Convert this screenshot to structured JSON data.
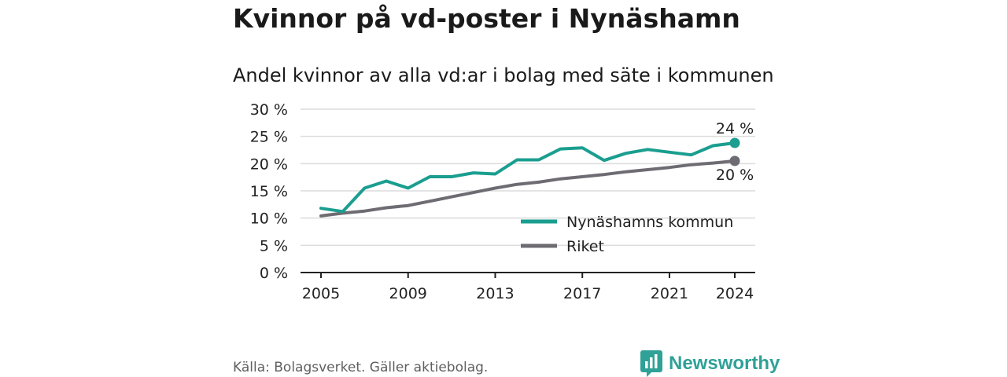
{
  "title": "Kvinnor på vd-poster i Nynäshamn",
  "subtitle": "Andel kvinnor av alla vd:ar i bolag med säte i kommunen",
  "source": "Källa: Bolagsverket. Gäller aktiebolag.",
  "brand": {
    "name": "Newsworthy",
    "logo_icon": "chart-bubble-icon"
  },
  "colors": {
    "primary": "#1a9e8f",
    "secondary": "#6e6c72",
    "brand": "#2fa197"
  },
  "chart_data": {
    "type": "line",
    "x": [
      2005,
      2006,
      2007,
      2008,
      2009,
      2010,
      2011,
      2012,
      2013,
      2014,
      2015,
      2016,
      2017,
      2018,
      2019,
      2020,
      2021,
      2022,
      2023,
      2024
    ],
    "series": [
      {
        "name": "Nynäshamns kommun",
        "color": "#1a9e8f",
        "values": [
          11.8,
          11.2,
          15.5,
          16.8,
          15.5,
          17.6,
          17.6,
          18.3,
          18.1,
          20.7,
          20.7,
          22.7,
          22.9,
          20.6,
          21.9,
          22.6,
          22.1,
          21.6,
          23.3,
          23.8
        ],
        "end_label": "24 %"
      },
      {
        "name": "Riket",
        "color": "#6e6c72",
        "values": [
          10.4,
          10.9,
          11.3,
          11.9,
          12.3,
          13.1,
          13.9,
          14.7,
          15.5,
          16.2,
          16.6,
          17.2,
          17.6,
          18.0,
          18.5,
          18.9,
          19.3,
          19.8,
          20.1,
          20.5
        ],
        "end_label": "20 %"
      }
    ],
    "x_ticks": [
      "2005",
      "2009",
      "2013",
      "2017",
      "2021",
      "2024"
    ],
    "y_ticks": [
      "0 %",
      "5 %",
      "10 %",
      "15 %",
      "20 %",
      "25 %",
      "30 %"
    ],
    "ylim": [
      0,
      30
    ],
    "grid": true,
    "legend_position": "bottom-right"
  }
}
